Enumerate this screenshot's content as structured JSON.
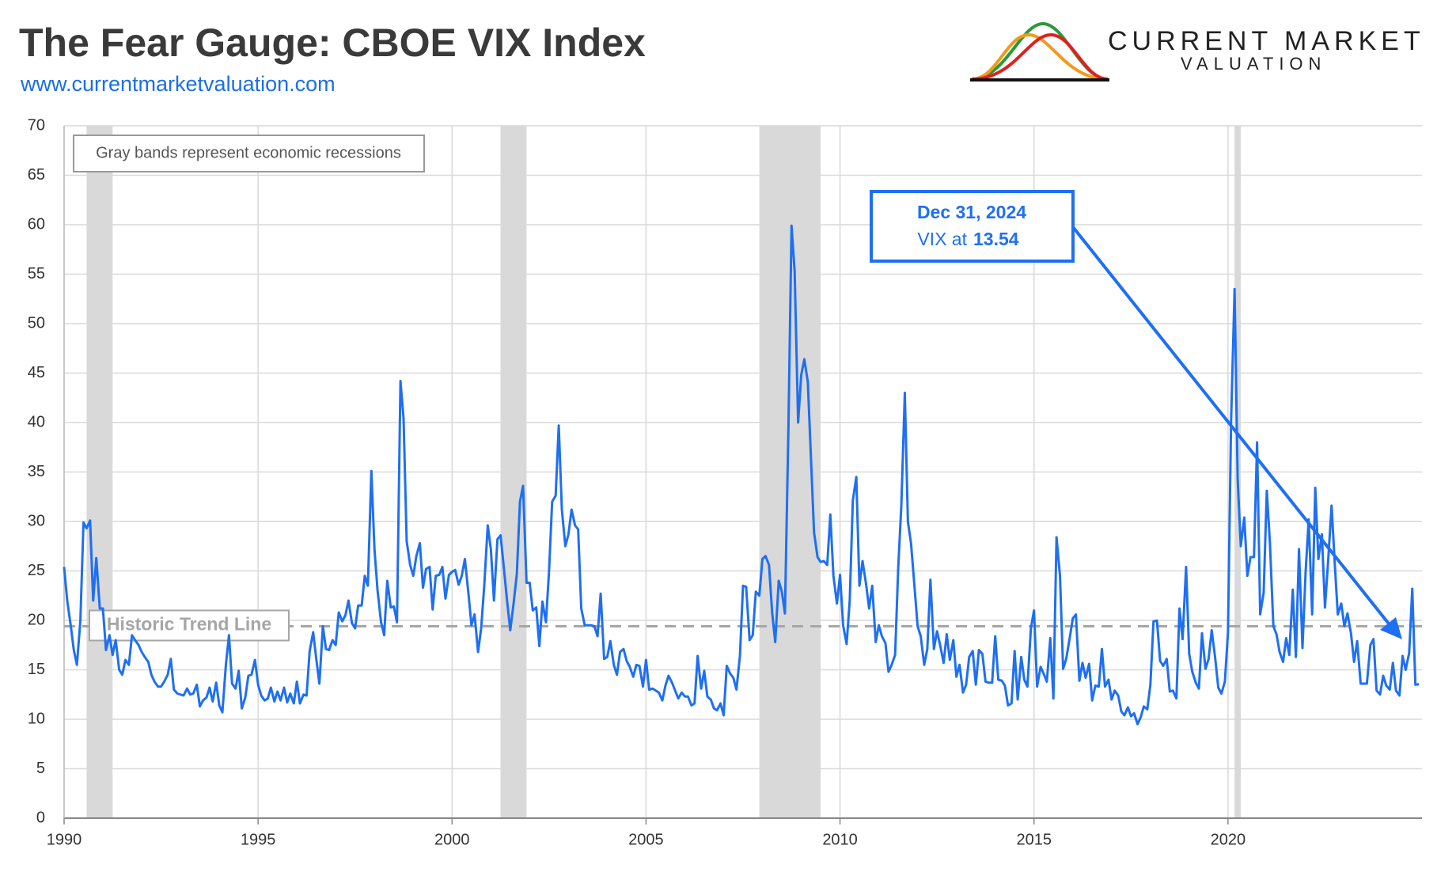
{
  "chart_data": {
    "type": "line",
    "title": "The Fear Gauge: CBOE VIX Index",
    "subtitle": "www.currentmarketvaluation.com",
    "logo": {
      "line1": "CURRENT MARKET",
      "line2": "VALUATION"
    },
    "note": "Gray bands represent economic recessions",
    "trend_line": {
      "label": "Historic Trend Line",
      "value": 19.4
    },
    "annotation": {
      "date": "Dec 31, 2024",
      "label": "VIX at",
      "value": 13.54
    },
    "recessions": [
      [
        1990.58,
        1991.25
      ],
      [
        2001.25,
        2001.92
      ],
      [
        2007.92,
        2009.5
      ],
      [
        2020.17,
        2020.33
      ]
    ],
    "color": "#1f6ff2",
    "xlim": [
      1990,
      2025
    ],
    "xticks": [
      1990,
      1995,
      2000,
      2005,
      2010,
      2015,
      2020
    ],
    "ylim": [
      0,
      70
    ],
    "yticks": [
      0,
      5,
      10,
      15,
      20,
      25,
      30,
      35,
      40,
      45,
      50,
      55,
      60,
      65,
      70
    ],
    "grid": true,
    "x": [
      1990,
      1990.08,
      1990.17,
      1990.25,
      1990.33,
      1990.42,
      1990.5,
      1990.58,
      1990.67,
      1990.75,
      1990.83,
      1990.92,
      1991,
      1991.08,
      1991.17,
      1991.25,
      1991.33,
      1991.42,
      1991.5,
      1991.58,
      1991.67,
      1991.75,
      1991.83,
      1991.92,
      1992,
      1992.08,
      1992.17,
      1992.25,
      1992.33,
      1992.42,
      1992.5,
      1992.58,
      1992.67,
      1992.75,
      1992.83,
      1992.92,
      1993,
      1993.08,
      1993.17,
      1993.25,
      1993.33,
      1993.42,
      1993.5,
      1993.58,
      1993.67,
      1993.75,
      1993.83,
      1993.92,
      1994,
      1994.08,
      1994.17,
      1994.25,
      1994.33,
      1994.42,
      1994.5,
      1994.58,
      1994.67,
      1994.75,
      1994.83,
      1994.92,
      1995,
      1995.08,
      1995.17,
      1995.25,
      1995.33,
      1995.42,
      1995.5,
      1995.58,
      1995.67,
      1995.75,
      1995.83,
      1995.92,
      1996,
      1996.08,
      1996.17,
      1996.25,
      1996.33,
      1996.42,
      1996.5,
      1996.58,
      1996.67,
      1996.75,
      1996.83,
      1996.92,
      1997,
      1997.08,
      1997.17,
      1997.25,
      1997.33,
      1997.42,
      1997.5,
      1997.58,
      1997.67,
      1997.75,
      1997.83,
      1997.92,
      1998,
      1998.08,
      1998.17,
      1998.25,
      1998.33,
      1998.42,
      1998.5,
      1998.58,
      1998.67,
      1998.75,
      1998.83,
      1998.92,
      1999,
      1999.08,
      1999.17,
      1999.25,
      1999.33,
      1999.42,
      1999.5,
      1999.58,
      1999.67,
      1999.75,
      1999.83,
      1999.92,
      2000,
      2000.08,
      2000.17,
      2000.25,
      2000.33,
      2000.42,
      2000.5,
      2000.58,
      2000.67,
      2000.75,
      2000.83,
      2000.92,
      2001,
      2001.08,
      2001.17,
      2001.25,
      2001.33,
      2001.42,
      2001.5,
      2001.58,
      2001.67,
      2001.75,
      2001.83,
      2001.92,
      2002,
      2002.08,
      2002.17,
      2002.25,
      2002.33,
      2002.42,
      2002.5,
      2002.58,
      2002.67,
      2002.75,
      2002.83,
      2002.92,
      2003,
      2003.08,
      2003.17,
      2003.25,
      2003.33,
      2003.42,
      2003.5,
      2003.58,
      2003.67,
      2003.75,
      2003.83,
      2003.92,
      2004,
      2004.08,
      2004.17,
      2004.25,
      2004.33,
      2004.42,
      2004.5,
      2004.58,
      2004.67,
      2004.75,
      2004.83,
      2004.92,
      2005,
      2005.08,
      2005.17,
      2005.25,
      2005.33,
      2005.42,
      2005.5,
      2005.58,
      2005.67,
      2005.75,
      2005.83,
      2005.92,
      2006,
      2006.08,
      2006.17,
      2006.25,
      2006.33,
      2006.42,
      2006.5,
      2006.58,
      2006.67,
      2006.75,
      2006.83,
      2006.92,
      2007,
      2007.08,
      2007.17,
      2007.25,
      2007.33,
      2007.42,
      2007.5,
      2007.58,
      2007.67,
      2007.75,
      2007.83,
      2007.92,
      2008,
      2008.08,
      2008.17,
      2008.25,
      2008.33,
      2008.42,
      2008.5,
      2008.58,
      2008.67,
      2008.75,
      2008.83,
      2008.92,
      2009,
      2009.08,
      2009.17,
      2009.25,
      2009.33,
      2009.42,
      2009.5,
      2009.58,
      2009.67,
      2009.75,
      2009.83,
      2009.92,
      2010,
      2010.08,
      2010.17,
      2010.25,
      2010.33,
      2010.42,
      2010.5,
      2010.58,
      2010.67,
      2010.75,
      2010.83,
      2010.92,
      2011,
      2011.08,
      2011.17,
      2011.25,
      2011.33,
      2011.42,
      2011.5,
      2011.58,
      2011.67,
      2011.75,
      2011.83,
      2011.92,
      2012,
      2012.08,
      2012.17,
      2012.25,
      2012.33,
      2012.42,
      2012.5,
      2012.58,
      2012.67,
      2012.75,
      2012.83,
      2012.92,
      2013,
      2013.08,
      2013.17,
      2013.25,
      2013.33,
      2013.42,
      2013.5,
      2013.58,
      2013.67,
      2013.75,
      2013.83,
      2013.92,
      2014,
      2014.08,
      2014.17,
      2014.25,
      2014.33,
      2014.42,
      2014.5,
      2014.58,
      2014.67,
      2014.75,
      2014.83,
      2014.92,
      2015,
      2015.08,
      2015.17,
      2015.25,
      2015.33,
      2015.42,
      2015.5,
      2015.58,
      2015.67,
      2015.75,
      2015.83,
      2015.92,
      2016,
      2016.08,
      2016.17,
      2016.25,
      2016.33,
      2016.42,
      2016.5,
      2016.58,
      2016.67,
      2016.75,
      2016.83,
      2016.92,
      2017,
      2017.08,
      2017.17,
      2017.25,
      2017.33,
      2017.42,
      2017.5,
      2017.58,
      2017.67,
      2017.75,
      2017.83,
      2017.92,
      2018,
      2018.08,
      2018.17,
      2018.25,
      2018.33,
      2018.42,
      2018.5,
      2018.58,
      2018.67,
      2018.75,
      2018.83,
      2018.92,
      2019,
      2019.08,
      2019.17,
      2019.25,
      2019.33,
      2019.42,
      2019.5,
      2019.58,
      2019.67,
      2019.75,
      2019.83,
      2019.92,
      2020,
      2020.08,
      2020.17,
      2020.25,
      2020.33,
      2020.42,
      2020.5,
      2020.58,
      2020.67,
      2020.75,
      2020.83,
      2020.92,
      2021,
      2021.08,
      2021.17,
      2021.25,
      2021.33,
      2021.42,
      2021.5,
      2021.58,
      2021.67,
      2021.75,
      2021.83,
      2021.92,
      2022,
      2022.08,
      2022.17,
      2022.25,
      2022.33,
      2022.42,
      2022.5,
      2022.58,
      2022.67,
      2022.75,
      2022.83,
      2022.92,
      2023,
      2023.08,
      2023.17,
      2023.25,
      2023.33,
      2023.42,
      2023.5,
      2023.58,
      2023.67,
      2023.75,
      2023.83,
      2023.92,
      2024,
      2024.08,
      2024.17,
      2024.25,
      2024.33,
      2024.42,
      2024.5,
      2024.58,
      2024.67,
      2024.75,
      2024.83,
      2024.92
    ],
    "values": [
      25.4,
      22,
      19.5,
      17,
      15.5,
      20,
      29.9,
      29.3,
      30.1,
      22,
      26.3,
      21.2,
      21.2,
      17,
      18.5,
      16.5,
      18,
      15,
      14.5,
      16,
      15.5,
      18.5,
      18,
      17.5,
      16.8,
      16.3,
      15.8,
      14.5,
      13.8,
      13.3,
      13.3,
      13.8,
      14.5,
      16.1,
      13,
      12.6,
      12.5,
      12.4,
      13.1,
      12.5,
      12.6,
      13.5,
      11.3,
      11.9,
      12.2,
      13.2,
      11.8,
      13.7,
      11.4,
      10.7,
      15.5,
      18.5,
      13.6,
      13.1,
      14.9,
      11.1,
      12.2,
      14.4,
      14.5,
      16,
      13.5,
      12.4,
      11.9,
      12.1,
      13.2,
      11.8,
      12.8,
      11.9,
      13.2,
      11.7,
      12.6,
      11.6,
      13.8,
      11.6,
      12.5,
      12.4,
      16.9,
      18.8,
      16.1,
      13.6,
      19.4,
      17.1,
      17,
      18,
      17.5,
      20.8,
      19.9,
      20.5,
      22,
      19.7,
      19.2,
      21.5,
      21.5,
      24.5,
      23.5,
      35.1,
      27.2,
      23,
      19.8,
      18.5,
      24,
      21.3,
      21.4,
      19.8,
      44.2,
      40.4,
      28,
      25.6,
      24.5,
      26.5,
      27.8,
      23.3,
      25.2,
      25.4,
      21.1,
      24.5,
      24.6,
      25.4,
      22.2,
      24.6,
      24.9,
      25.1,
      23.6,
      24.5,
      26.2,
      22.8,
      19.5,
      20.6,
      16.8,
      19.2,
      23.5,
      29.6,
      27.2,
      22,
      28.2,
      28.6,
      25.5,
      21.9,
      19,
      21.5,
      24.7,
      32,
      33.6,
      23.8,
      23.8,
      21,
      21.3,
      17.4,
      21.9,
      19.8,
      25,
      32,
      32.6,
      39.7,
      31.2,
      27.5,
      28.7,
      31.2,
      29.6,
      29.2,
      21.2,
      19.5,
      19.5,
      19.5,
      19.4,
      18.4,
      22.7,
      16.1,
      16.3,
      17.9,
      15.5,
      14.5,
      16.8,
      17.1,
      15.9,
      15.3,
      14.3,
      15.5,
      15.4,
      13.3,
      16,
      13,
      13.1,
      12.9,
      12.7,
      11.9,
      13.4,
      14.4,
      13.7,
      12.9,
      12.1,
      12.7,
      12.3,
      12.3,
      11.4,
      11.6,
      16.4,
      13.1,
      14.9,
      12.3,
      11.98,
      11.1,
      10.9,
      11.6,
      10.4,
      15.4,
      14.6,
      14.2,
      13,
      16.4,
      23.5,
      23.4,
      18,
      18.5,
      22.9,
      22.5,
      26.2,
      26.5,
      25.6,
      20.8,
      17.8,
      24,
      22.9,
      20.7,
      39.4,
      59.9,
      55.3,
      40,
      44.8,
      46.4,
      44.1,
      36.5,
      28.9,
      26.4,
      25.9,
      26,
      25.6,
      30.7,
      24.5,
      21.7,
      24.6,
      19.5,
      17.6,
      22,
      32.1,
      34.5,
      23.5,
      26,
      23.7,
      21.2,
      23.5,
      17.8,
      19.5,
      18.4,
      17.7,
      14.8,
      15.5,
      16.5,
      25.3,
      31.6,
      43,
      29.96,
      27.8,
      23.4,
      19.4,
      18.4,
      15.5,
      17.1,
      24.1,
      17.1,
      18.9,
      17.5,
      15.7,
      18.6,
      16,
      18,
      14.3,
      15.5,
      12.7,
      13.5,
      16.3,
      16.9,
      13.5,
      17,
      16.6,
      13.8,
      13.7,
      13.7,
      18.4,
      14,
      13.9,
      13.4,
      11.4,
      11.6,
      16.9,
      12,
      16.3,
      14,
      13.3,
      19.2,
      21,
      13.3,
      15.3,
      14.6,
      13.8,
      18.2,
      12.1,
      28.4,
      24.5,
      15.1,
      16.1,
      18.2,
      20.2,
      20.6,
      13.9,
      15.7,
      14.2,
      15.6,
      11.9,
      13.4,
      13.3,
      17.1,
      13.3,
      14,
      11.99,
      12.9,
      12.4,
      10.8,
      10.4,
      11.2,
      10.3,
      10.6,
      9.5,
      10.2,
      11.3,
      11,
      13.5,
      19.9,
      19.97,
      15.9,
      15.4,
      16.1,
      12.8,
      12.9,
      12.1,
      21.2,
      18.1,
      25.4,
      16.6,
      14.8,
      13.7,
      13.1,
      18.7,
      15.1,
      16.1,
      19,
      16.2,
      13.2,
      12.6,
      13.8,
      18.8,
      40.1,
      53.5,
      34.2,
      27.5,
      30.4,
      24.5,
      26.4,
      26.4,
      38,
      20.6,
      22.8,
      33.1,
      27.9,
      19.4,
      18.6,
      16.8,
      15.8,
      18.2,
      16.5,
      23.1,
      16.3,
      27.2,
      17.2,
      24.8,
      30.2,
      20.6,
      33.4,
      26.2,
      28.7,
      21.3,
      25.9,
      31.6,
      25.9,
      20.6,
      21.7,
      19.4,
      20.7,
      18.7,
      15.8,
      17.9,
      13.6,
      13.6,
      13.6,
      17.5,
      18.1,
      12.9,
      12.5,
      14.4,
      13.4,
      13,
      15.7,
      12.9,
      12.4,
      16.4,
      15,
      16.7,
      23.2,
      13.5,
      13.54
    ]
  }
}
